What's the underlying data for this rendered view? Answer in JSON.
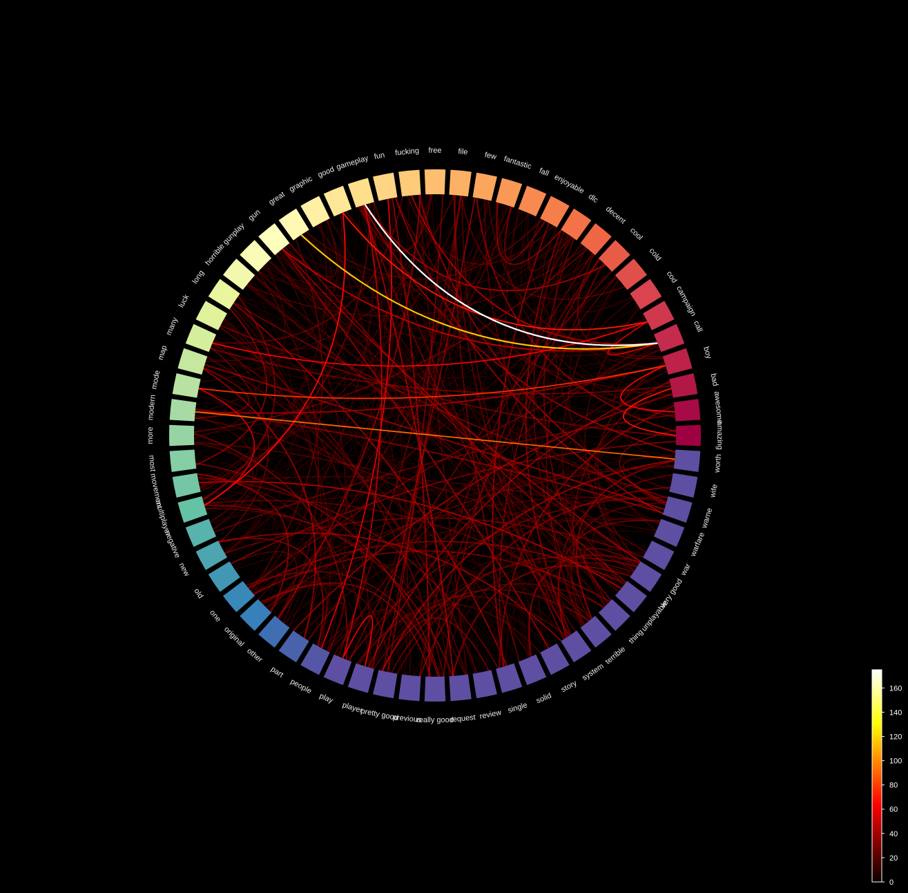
{
  "chart_data": {
    "type": "chord",
    "nodes": [
      "amazing",
      "awesome",
      "bad",
      "boy",
      "call",
      "campaign",
      "cod",
      "cold",
      "cool",
      "decent",
      "dlc",
      "enjoyable",
      "fall",
      "fantastic",
      "few",
      "file",
      "free",
      "fucking",
      "fun",
      "gameplay",
      "good",
      "graphic",
      "great",
      "gun",
      "gunplay",
      "horrible",
      "long",
      "luck",
      "many",
      "map",
      "mode",
      "modern",
      "more",
      "most",
      "movement",
      "multiplayer",
      "negative",
      "new",
      "old",
      "one",
      "original",
      "other",
      "part",
      "people",
      "play",
      "player",
      "pretty good",
      "previous",
      "really good",
      "request",
      "review",
      "single",
      "solid",
      "story",
      "system",
      "terrible",
      "thing",
      "unplayable",
      "very good",
      "war",
      "warfare",
      "warne",
      "wife",
      "worth"
    ],
    "node_colors": [
      "#9e0142",
      "#a60b45",
      "#b21846",
      "#bd2249",
      "#c52b4c",
      "#d0384d",
      "#d9444e",
      "#e0504a",
      "#e85b47",
      "#ef6645",
      "#f47247",
      "#f67e4b",
      "#f88a50",
      "#fa9856",
      "#fca55d",
      "#fdb165",
      "#fdbe6f",
      "#fecb79",
      "#fed584",
      "#fee08b",
      "#fee898",
      "#fff0a6",
      "#fff9b3",
      "#fefebd",
      "#f9fcb6",
      "#f2f9ae",
      "#e9f69d",
      "#e0f29a",
      "#d4ee9b",
      "#c6e89e",
      "#b8e2a1",
      "#a7daa4",
      "#96d4a4",
      "#86cea4",
      "#75c6a5",
      "#66c2a5",
      "#58b3ac",
      "#4ca5b0",
      "#4298b4",
      "#3888b8",
      "#3880b9",
      "#3f6fb2",
      "#4962ab",
      "#5556a5",
      "#5e4fa2",
      "#5e4fa2",
      "#5e4fa2",
      "#5e4fa2",
      "#5e4fa2",
      "#5e4fa2",
      "#5e4fa2",
      "#5e4fa2",
      "#5e4fa2",
      "#5e4fa2",
      "#5e4fa2",
      "#5e4fa2",
      "#5e4fa2",
      "#5e4fa2",
      "#5e4fa2",
      "#5e4fa2",
      "#5e4fa2",
      "#5e4fa2",
      "#5e4fa2",
      "#5e4fa2"
    ],
    "strong_links": [
      {
        "source": "call",
        "target": "gameplay",
        "value": 175
      },
      {
        "source": "call",
        "target": "great",
        "value": 115
      },
      {
        "source": "worth",
        "target": "modern",
        "value": 90
      },
      {
        "source": "boy",
        "target": "mode",
        "value": 75
      },
      {
        "source": "campaign",
        "target": "good",
        "value": 70
      },
      {
        "source": "bad",
        "target": "amazing",
        "value": 68
      },
      {
        "source": "multiplayer",
        "target": "good",
        "value": 65
      },
      {
        "source": "boy",
        "target": "awesome",
        "value": 62
      },
      {
        "source": "campaign",
        "target": "many",
        "value": 58
      },
      {
        "source": "play",
        "target": "player",
        "value": 55
      },
      {
        "source": "people",
        "target": "fun",
        "value": 52
      },
      {
        "source": "campaign",
        "target": "call",
        "value": 50
      },
      {
        "source": "multiplayer",
        "target": "mode",
        "value": 48
      },
      {
        "source": "call",
        "target": "gun",
        "value": 46
      },
      {
        "source": "play",
        "target": "gameplay",
        "value": 44
      },
      {
        "source": "fucking",
        "target": "call",
        "value": 42
      },
      {
        "source": "unplayable",
        "target": "movement",
        "value": 40
      },
      {
        "source": "cool",
        "target": "gameplay",
        "value": 38
      },
      {
        "source": "boy",
        "target": "modern",
        "value": 36
      },
      {
        "source": "story",
        "target": "gun",
        "value": 34
      }
    ],
    "colorbar": {
      "min": 0,
      "max": 175,
      "ticks": [
        0,
        20,
        40,
        60,
        80,
        100,
        120,
        140,
        160
      ],
      "colormap": "hot"
    }
  }
}
